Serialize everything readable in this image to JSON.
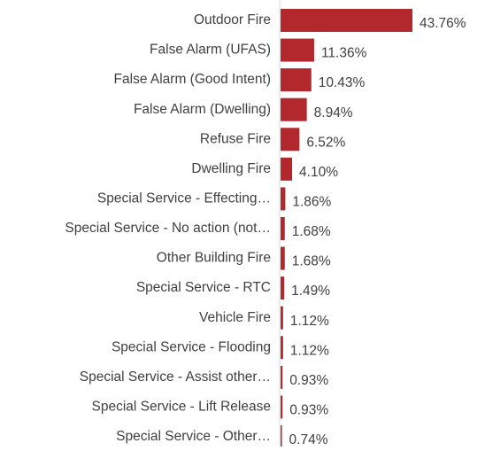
{
  "chart_data": {
    "type": "bar",
    "orientation": "horizontal",
    "color": "#b3282d",
    "categories": [
      "Outdoor Fire",
      "False Alarm (UFAS)",
      "False Alarm (Good Intent)",
      "False Alarm (Dwelling)",
      "Refuse Fire",
      "Dwelling Fire",
      "Special Service - Effecting…",
      "Special Service - No action (not…",
      "Other Building Fire",
      "Special Service - RTC",
      "Vehicle Fire",
      "Special Service - Flooding",
      "Special Service - Assist other…",
      "Special Service - Lift Release",
      "Special Service - Other…"
    ],
    "values": [
      43.76,
      11.36,
      10.43,
      8.94,
      6.52,
      4.1,
      1.86,
      1.68,
      1.68,
      1.49,
      1.12,
      1.12,
      0.93,
      0.93,
      0.74
    ],
    "value_labels": [
      "43.76%",
      "11.36%",
      "10.43%",
      "8.94%",
      "6.52%",
      "4.10%",
      "1.86%",
      "1.68%",
      "1.68%",
      "1.49%",
      "1.12%",
      "1.12%",
      "0.93%",
      "0.93%",
      "0.74%"
    ]
  }
}
